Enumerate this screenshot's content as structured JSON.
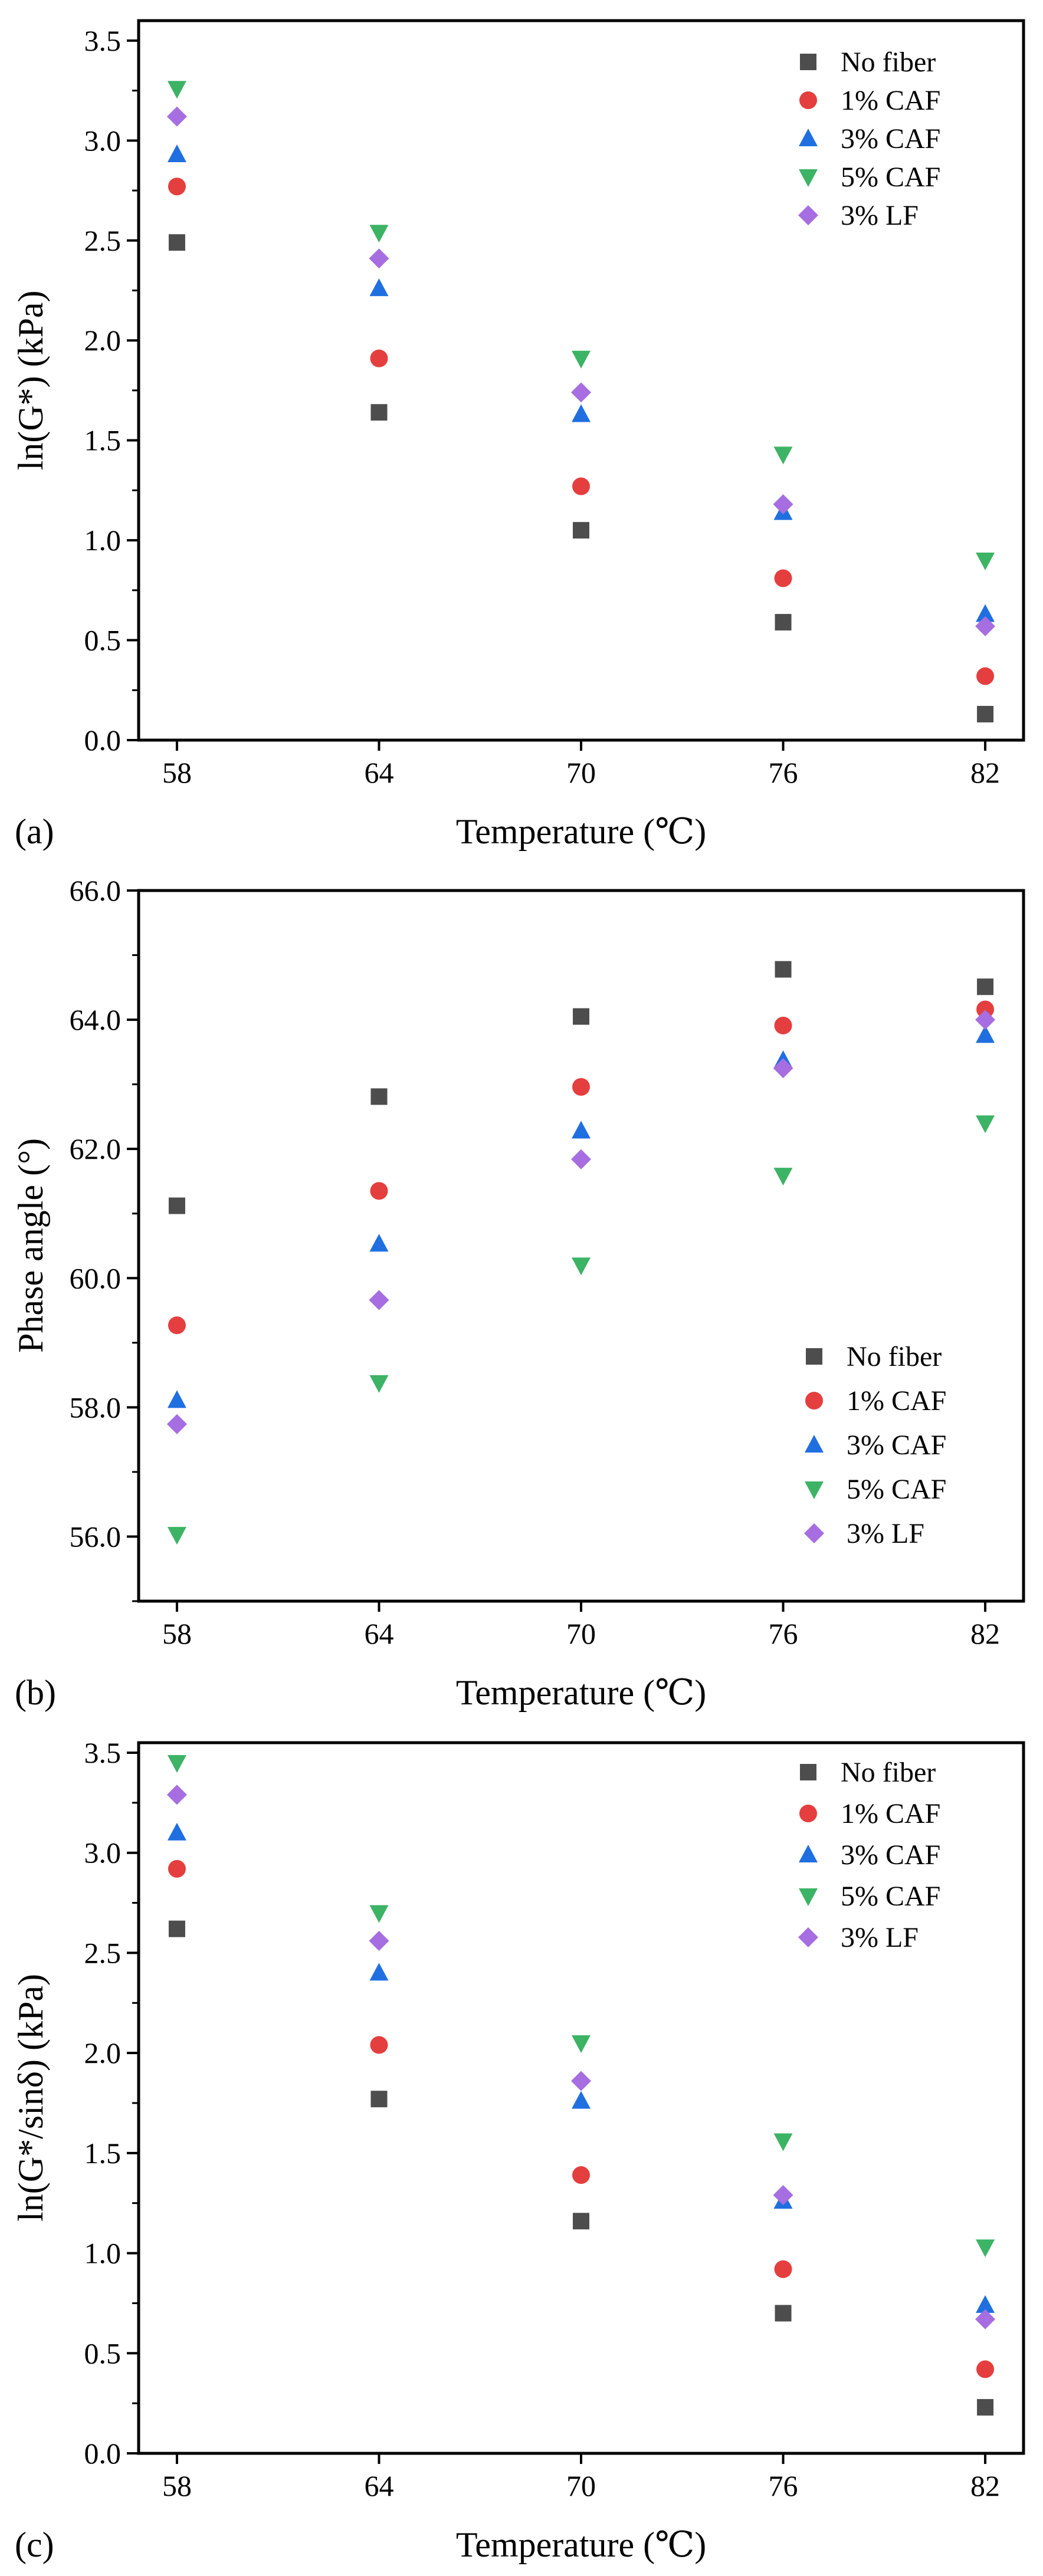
{
  "figure": {
    "panel_labels": [
      "(a)",
      "(b)",
      "(c)"
    ]
  },
  "series_styles": [
    {
      "name": "No fiber",
      "color": "#4d4d4d",
      "marker": "square"
    },
    {
      "name": "1% CAF",
      "color": "#e53e3e",
      "marker": "circle"
    },
    {
      "name": "3% CAF",
      "color": "#1f6fe0",
      "marker": "triangle-up"
    },
    {
      "name": "5% CAF",
      "color": "#3cb365",
      "marker": "triangle-down"
    },
    {
      "name": "3% LF",
      "color": "#a66ee0",
      "marker": "diamond"
    }
  ],
  "chart_data": [
    {
      "type": "scatter",
      "panel": "(a)",
      "title": "",
      "xlabel": "Temperature (℃)",
      "ylabel": "ln(G*) (kPa)",
      "categories": [
        "58",
        "64",
        "70",
        "76",
        "82"
      ],
      "ylim": [
        0.0,
        3.6
      ],
      "yticks": [
        "0.0",
        "0.5",
        "1.0",
        "1.5",
        "2.0",
        "2.5",
        "3.0",
        "3.5"
      ],
      "legend_position": "top-right",
      "series": [
        {
          "name": "No fiber",
          "values": [
            2.49,
            1.64,
            1.05,
            0.59,
            0.13
          ]
        },
        {
          "name": "1% CAF",
          "values": [
            2.77,
            1.91,
            1.27,
            0.81,
            0.32
          ]
        },
        {
          "name": "3% CAF",
          "values": [
            2.93,
            2.26,
            1.63,
            1.14,
            0.63
          ]
        },
        {
          "name": "5% CAF",
          "values": [
            3.26,
            2.54,
            1.91,
            1.43,
            0.9
          ]
        },
        {
          "name": "3% LF",
          "values": [
            3.12,
            2.41,
            1.74,
            1.18,
            0.57
          ]
        }
      ]
    },
    {
      "type": "scatter",
      "panel": "(b)",
      "title": "",
      "xlabel": "Temperature (℃)",
      "ylabel": "Phase angle (°)",
      "categories": [
        "58",
        "64",
        "70",
        "76",
        "82"
      ],
      "ylim": [
        55.0,
        66.0
      ],
      "yticks": [
        "56.0",
        "58.0",
        "60.0",
        "62.0",
        "64.0",
        "66.0"
      ],
      "legend_position": "bottom-right",
      "series": [
        {
          "name": "No fiber",
          "values": [
            61.12,
            62.81,
            64.05,
            64.78,
            64.51
          ]
        },
        {
          "name": "1% CAF",
          "values": [
            59.27,
            61.35,
            62.96,
            63.91,
            64.16
          ]
        },
        {
          "name": "3% CAF",
          "values": [
            58.11,
            60.53,
            62.28,
            63.37,
            63.76
          ]
        },
        {
          "name": "5% CAF",
          "values": [
            56.03,
            58.38,
            60.2,
            61.59,
            62.4
          ]
        },
        {
          "name": "3% LF",
          "values": [
            57.74,
            59.66,
            61.84,
            63.25,
            64.0
          ]
        }
      ]
    },
    {
      "type": "scatter",
      "panel": "(c)",
      "title": "",
      "xlabel": "Temperature (℃)",
      "ylabel": "ln(G*/sinδ) (kPa)",
      "categories": [
        "58",
        "64",
        "70",
        "76",
        "82"
      ],
      "ylim": [
        0.0,
        3.55
      ],
      "yticks": [
        "0.0",
        "0.5",
        "1.0",
        "1.5",
        "2.0",
        "2.5",
        "3.0",
        "3.5"
      ],
      "legend_position": "top-right",
      "series": [
        {
          "name": "No fiber",
          "values": [
            2.62,
            1.77,
            1.16,
            0.7,
            0.23
          ]
        },
        {
          "name": "1% CAF",
          "values": [
            2.92,
            2.04,
            1.39,
            0.92,
            0.42
          ]
        },
        {
          "name": "3% CAF",
          "values": [
            3.1,
            2.4,
            1.76,
            1.26,
            0.74
          ]
        },
        {
          "name": "5% CAF",
          "values": [
            3.45,
            2.7,
            2.05,
            1.56,
            1.03
          ]
        },
        {
          "name": "3% LF",
          "values": [
            3.29,
            2.56,
            1.86,
            1.29,
            0.67
          ]
        }
      ]
    }
  ]
}
